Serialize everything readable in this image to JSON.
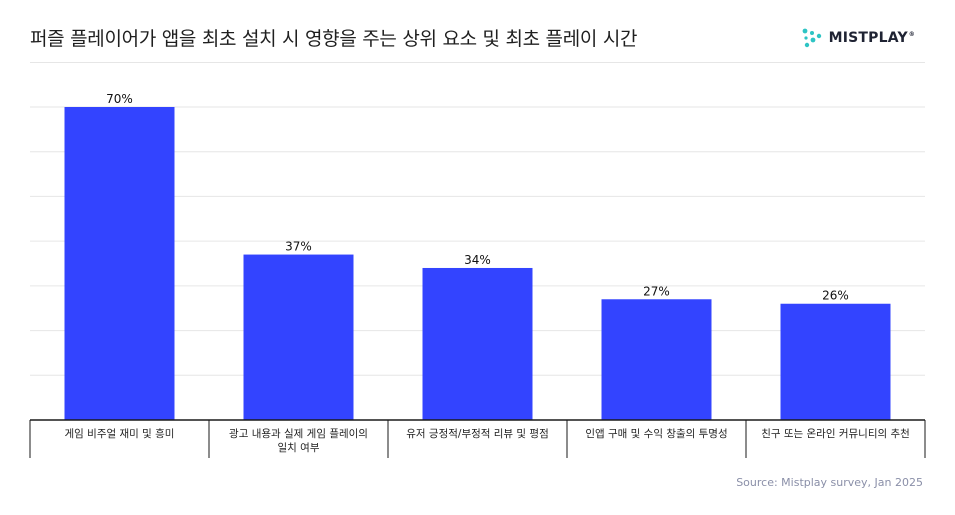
{
  "header": {
    "title": "퍼즐 플레이어가 앱을 최초 설치 시 영향을 주는 상위 요소 및 최초 플레이 시간",
    "logo_text": "MISTPLAY",
    "logo_reg": "®"
  },
  "source": "Source: Mistplay survey, Jan 2025",
  "colors": {
    "bar": "#3344ff",
    "gridline": "#e6e6e6",
    "axis": "#1a1a1a",
    "logo_teal": "#2ec4c4"
  },
  "chart_data": {
    "type": "bar",
    "categories": [
      [
        "게임 비주얼 재미 및 흥미"
      ],
      [
        "광고 내용과 실제 게임 플레이의",
        "일치 여부"
      ],
      [
        "유저 긍정적/부정적 리뷰 및 평점"
      ],
      [
        "인앱 구매 및 수익 창출의 투명성"
      ],
      [
        "친구 또는 온라인 커뮤니티의 추천"
      ]
    ],
    "values": [
      70,
      37,
      34,
      27,
      26
    ],
    "data_labels": [
      "70%",
      "37%",
      "34%",
      "27%",
      "26%"
    ],
    "ylim": [
      0,
      70
    ],
    "grid": true,
    "legend": "none"
  }
}
